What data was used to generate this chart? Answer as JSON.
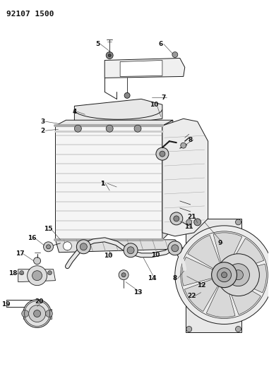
{
  "title_code": "92107 1500",
  "bg_color": "#ffffff",
  "line_color": "#1a1a1a",
  "label_color": "#111111",
  "title_fontsize": 8,
  "label_fontsize": 6.5,
  "fig_width": 3.81,
  "fig_height": 5.33
}
